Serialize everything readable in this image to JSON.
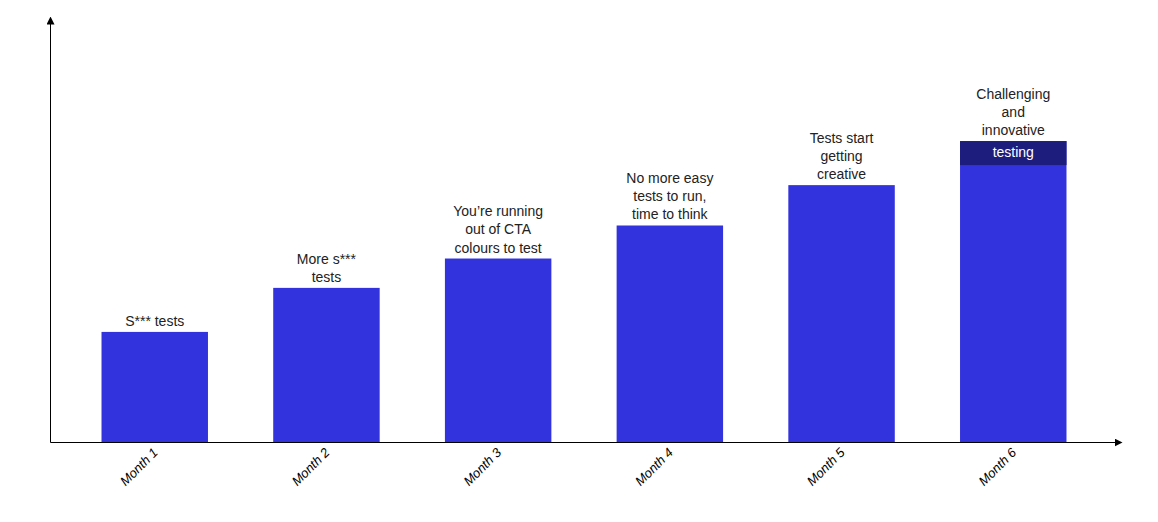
{
  "chart_data": {
    "type": "bar",
    "categories": [
      "Month 1",
      "Month 2",
      "Month 3",
      "Month 4",
      "Month 5",
      "Month 6"
    ],
    "values": [
      3.0,
      4.2,
      5.0,
      5.9,
      7.0,
      8.2
    ],
    "color": "#3333dd",
    "ylim": [
      0,
      11.5
    ],
    "yticks": [],
    "grid": false,
    "tick_labels": "x",
    "annotations": [
      {
        "x": "Month 1",
        "text": "S*** tests",
        "position": "above"
      },
      {
        "x": "Month 2",
        "text": "More s***\ntests",
        "position": "above"
      },
      {
        "x": "Month 3",
        "text": "You’re running\nout of CTA\ncolours to test",
        "position": "above"
      },
      {
        "x": "Month 4",
        "text": "No more easy\ntests to run,\ntime to think",
        "position": "above"
      },
      {
        "x": "Month 5",
        "text": "Tests start\ngetting\ncreative",
        "position": "above"
      },
      {
        "x": "Month 6",
        "text": "Challenging\nand\ninnovative",
        "position": "above"
      },
      {
        "x": "Month 6",
        "text": "testing",
        "position": "inside"
      }
    ]
  }
}
